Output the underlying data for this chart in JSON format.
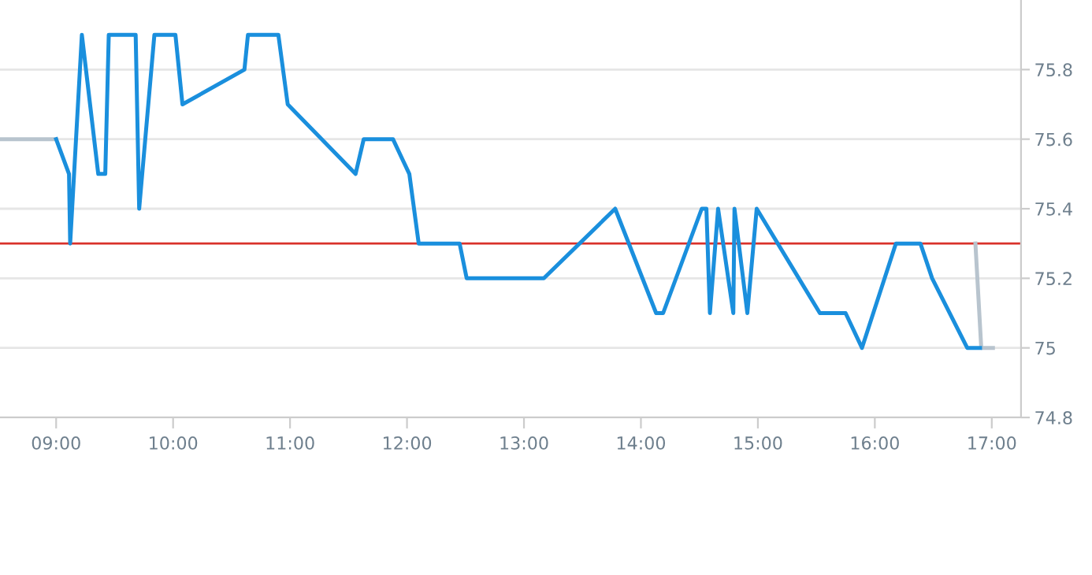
{
  "chart_data": {
    "type": "line",
    "xlim": [
      8.52,
      17.25
    ],
    "ylim": [
      74.8,
      76.0
    ],
    "xticks": [
      {
        "value": 9,
        "label": "09:00"
      },
      {
        "value": 10,
        "label": "10:00"
      },
      {
        "value": 11,
        "label": "11:00"
      },
      {
        "value": 12,
        "label": "12:00"
      },
      {
        "value": 13,
        "label": "13:00"
      },
      {
        "value": 14,
        "label": "14:00"
      },
      {
        "value": 15,
        "label": "15:00"
      },
      {
        "value": 16,
        "label": "16:00"
      },
      {
        "value": 17,
        "label": "17:00"
      }
    ],
    "yticks": [
      74.8,
      {
        "value": 75,
        "label": "75"
      },
      75.2,
      75.4,
      75.6,
      75.8
    ],
    "grid": "y",
    "legend": false,
    "marker": "none",
    "line_style": "solid",
    "ref_lines": [
      {
        "axis": "y",
        "value": 75.3,
        "label": null,
        "color": "#d9322b"
      }
    ],
    "series": [
      {
        "color": "#b8c4ce",
        "x": [
          8.52,
          9.0
        ],
        "values": [
          75.6,
          75.6
        ]
      },
      {
        "color": "#b8c4ce",
        "x": [
          16.86,
          16.91,
          17.01
        ],
        "values": [
          75.3,
          75.0,
          75.0
        ]
      },
      {
        "color": "#1a8fdd",
        "x": [
          9.0,
          9.11,
          9.12,
          9.22,
          9.36,
          9.42,
          9.45,
          9.68,
          9.71,
          9.84,
          10.02,
          10.08,
          10.61,
          10.64,
          10.9,
          10.98,
          11.56,
          11.63,
          11.88,
          12.02,
          12.1,
          12.45,
          12.51,
          13.17,
          13.78,
          14.13,
          14.19,
          14.52,
          14.56,
          14.59,
          14.66,
          14.79,
          14.8,
          14.91,
          14.99,
          15.53,
          15.75,
          15.89,
          16.18,
          16.39,
          16.49,
          16.79,
          16.9
        ],
        "values": [
          75.6,
          75.5,
          75.3,
          75.9,
          75.5,
          75.5,
          75.9,
          75.9,
          75.4,
          75.9,
          75.9,
          75.7,
          75.8,
          75.9,
          75.9,
          75.7,
          75.5,
          75.6,
          75.6,
          75.5,
          75.3,
          75.3,
          75.2,
          75.2,
          75.4,
          75.1,
          75.1,
          75.4,
          75.4,
          75.1,
          75.4,
          75.1,
          75.4,
          75.1,
          75.4,
          75.1,
          75.1,
          75.0,
          75.3,
          75.3,
          75.2,
          75.0,
          75.0
        ]
      }
    ]
  }
}
